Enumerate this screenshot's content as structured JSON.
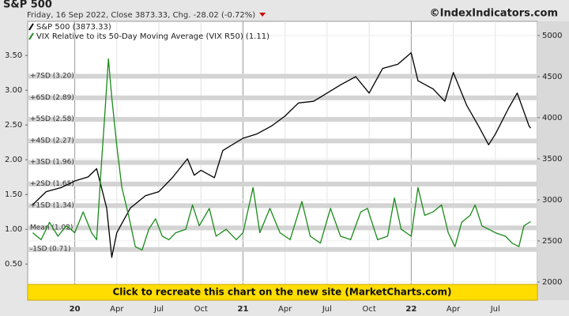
{
  "chart_data": {
    "type": "line",
    "title": "S&P 500",
    "subtitle": "Friday, 16 Sep 2022, Close 3873.33, Chg. -28.02 (-0.72%)",
    "source": "©IndexIndicators.com",
    "banner": "Click to recreate this chart on the new site (MarketCharts.com)",
    "xlim": [
      2019.72,
      2022.75
    ],
    "xticks": [
      {
        "value": 2020,
        "label": "20"
      },
      {
        "value": 2020.25,
        "label": "Apr"
      },
      {
        "value": 2020.5,
        "label": "Jul"
      },
      {
        "value": 2020.75,
        "label": "Oct"
      },
      {
        "value": 2021,
        "label": "21"
      },
      {
        "value": 2021.25,
        "label": "Apr"
      },
      {
        "value": 2021.5,
        "label": "Jul"
      },
      {
        "value": 2021.75,
        "label": "Oct"
      },
      {
        "value": 2022,
        "label": "22"
      },
      {
        "value": 2022.25,
        "label": "Apr"
      },
      {
        "value": 2022.5,
        "label": "Jul"
      }
    ],
    "ylim": [
      -0.02,
      3.99
    ],
    "yticks": [
      {
        "value": 0.5,
        "label": "0.50"
      },
      {
        "value": 1,
        "label": "1.00"
      },
      {
        "value": 1.5,
        "label": "1.50"
      },
      {
        "value": 2,
        "label": "2.00"
      },
      {
        "value": 2.5,
        "label": "2.50"
      },
      {
        "value": 3,
        "label": "3.00"
      },
      {
        "value": 3.5,
        "label": "3.50"
      }
    ],
    "y2lim": [
      1779,
      5173
    ],
    "y2ticks": [
      2000,
      2500,
      3000,
      3500,
      4000,
      4500,
      5000
    ],
    "bands": [
      {
        "label": "+7SD (3.20)",
        "value": 3.2
      },
      {
        "label": "+6SD (2.89)",
        "value": 2.89
      },
      {
        "label": "+5SD (2.58)",
        "value": 2.58
      },
      {
        "label": "+4SD (2.27)",
        "value": 2.27
      },
      {
        "label": "+3SD (1.96)",
        "value": 1.96
      },
      {
        "label": "+2SD (1.65)",
        "value": 1.65
      },
      {
        "label": "+1SD (1.34)",
        "value": 1.34
      },
      {
        "label": "Mean (1.02)",
        "value": 1.02
      },
      {
        "label": "-1SD (0.71)",
        "value": 0.71
      }
    ],
    "series": [
      {
        "name": "S&P 500 (3873.33)",
        "color": "#000000",
        "axis": "y2",
        "x": [
          2019.75,
          2019.83,
          2019.92,
          2020.0,
          2020.08,
          2020.13,
          2020.19,
          2020.22,
          2020.25,
          2020.33,
          2020.42,
          2020.5,
          2020.58,
          2020.67,
          2020.71,
          2020.75,
          2020.83,
          2020.88,
          2021.0,
          2021.08,
          2021.17,
          2021.25,
          2021.33,
          2021.42,
          2021.5,
          2021.58,
          2021.67,
          2021.75,
          2021.83,
          2021.92,
          2022.0,
          2022.04,
          2022.13,
          2022.2,
          2022.25,
          2022.33,
          2022.4,
          2022.46,
          2022.5,
          2022.58,
          2022.63,
          2022.7,
          2022.71
        ],
        "values": [
          2940,
          3100,
          3150,
          3230,
          3280,
          3380,
          2900,
          2300,
          2600,
          2900,
          3050,
          3100,
          3270,
          3500,
          3300,
          3360,
          3270,
          3600,
          3750,
          3800,
          3900,
          4020,
          4180,
          4200,
          4300,
          4400,
          4500,
          4300,
          4600,
          4650,
          4790,
          4450,
          4350,
          4200,
          4550,
          4150,
          3900,
          3670,
          3800,
          4120,
          4300,
          3900,
          3873.33
        ]
      },
      {
        "name": "VIX Relative to its 50-Day Moving Average (VIX R50) (1.11)",
        "color": "#1a8a1a",
        "x": [
          2019.75,
          2019.8,
          2019.85,
          2019.9,
          2019.95,
          2020.0,
          2020.05,
          2020.1,
          2020.13,
          2020.16,
          2020.18,
          2020.2,
          2020.22,
          2020.25,
          2020.28,
          2020.32,
          2020.36,
          2020.4,
          2020.44,
          2020.48,
          2020.52,
          2020.56,
          2020.6,
          2020.66,
          2020.7,
          2020.74,
          2020.8,
          2020.84,
          2020.9,
          2020.96,
          2021.0,
          2021.06,
          2021.1,
          2021.16,
          2021.22,
          2021.28,
          2021.35,
          2021.4,
          2021.46,
          2021.52,
          2021.58,
          2021.64,
          2021.7,
          2021.74,
          2021.8,
          2021.86,
          2021.9,
          2021.94,
          2022.0,
          2022.04,
          2022.08,
          2022.13,
          2022.18,
          2022.22,
          2022.26,
          2022.3,
          2022.35,
          2022.38,
          2022.42,
          2022.46,
          2022.5,
          2022.56,
          2022.6,
          2022.64,
          2022.67,
          2022.71
        ],
        "values": [
          0.95,
          0.85,
          1.1,
          0.9,
          1.05,
          0.95,
          1.25,
          0.95,
          0.85,
          2.0,
          2.7,
          3.45,
          2.9,
          2.2,
          1.6,
          1.2,
          0.75,
          0.7,
          1.0,
          1.15,
          0.9,
          0.85,
          0.95,
          1.0,
          1.35,
          1.05,
          1.3,
          0.9,
          1.0,
          0.85,
          0.95,
          1.6,
          0.95,
          1.3,
          0.95,
          0.85,
          1.4,
          0.9,
          0.8,
          1.3,
          0.9,
          0.85,
          1.25,
          1.3,
          0.85,
          0.9,
          1.45,
          1.0,
          0.9,
          1.6,
          1.2,
          1.25,
          1.35,
          0.95,
          0.75,
          1.1,
          1.2,
          1.35,
          1.05,
          1.0,
          0.95,
          0.9,
          0.8,
          0.75,
          1.05,
          1.11
        ]
      }
    ]
  }
}
